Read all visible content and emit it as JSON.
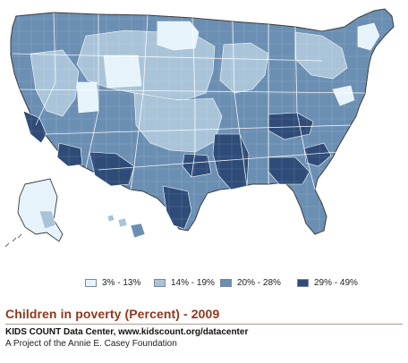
{
  "colors": {
    "class1": "#e6f3fa",
    "class2": "#a9c4d8",
    "class3": "#6b8fb3",
    "class4": "#2f4c78",
    "border": "#ffffff",
    "outline": "#3a3a3a"
  },
  "legend": [
    {
      "label": "3% - 13%",
      "color_key": "class1"
    },
    {
      "label": "14% - 19%",
      "color_key": "class2"
    },
    {
      "label": "20% - 28%",
      "color_key": "class3"
    },
    {
      "label": "29% - 49%",
      "color_key": "class4"
    }
  ],
  "title": "Children in poverty (Percent) - 2009",
  "source": "KIDS COUNT Data Center, www.kidscount.org/datacenter",
  "credit": "A Project of the Annie E. Casey Foundation"
}
